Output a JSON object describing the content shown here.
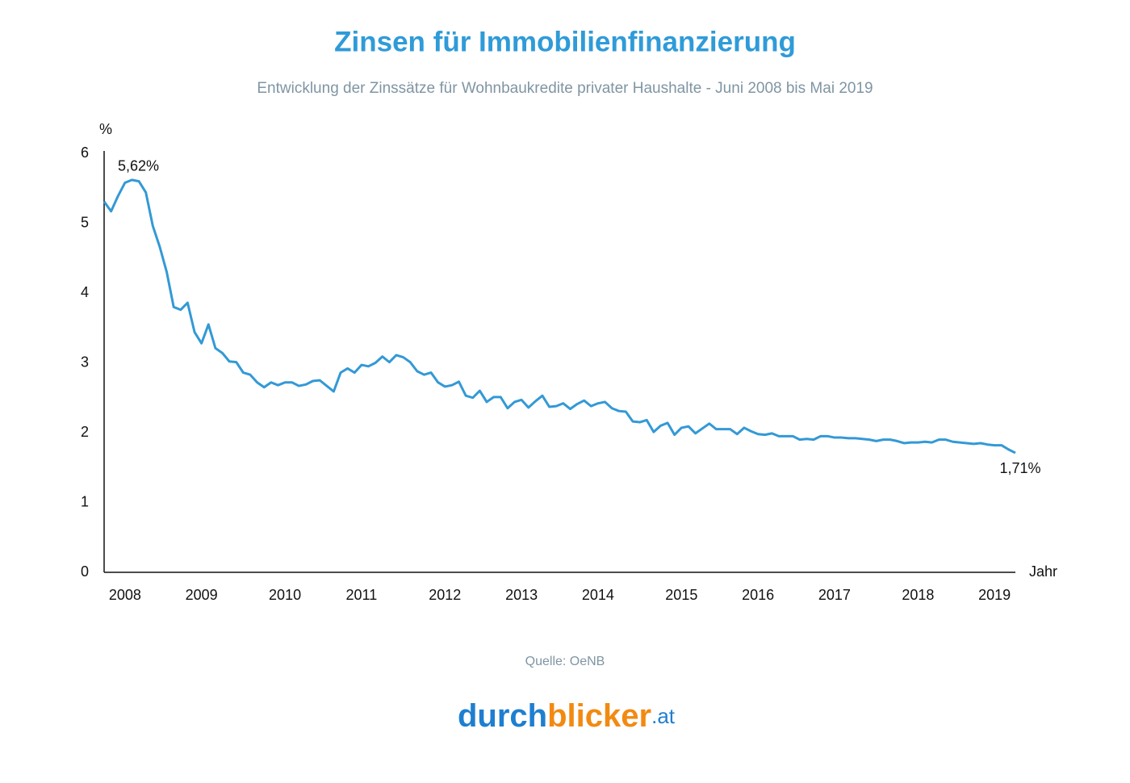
{
  "chart_data": {
    "type": "line",
    "title": "Zinsen für Immobilienfinanzierung",
    "subtitle": "Entwicklung der Zinssätze für Wohnbaukredite privater Haushalte - Juni 2008 bis Mai 2019",
    "ylabel": "%",
    "xlabel": "Jahr",
    "source": "Quelle: OeNB",
    "logo": [
      "durch",
      "blicker",
      ".at"
    ],
    "ylim": [
      0,
      6
    ],
    "yticks": [
      0,
      1,
      2,
      3,
      4,
      5,
      6
    ],
    "grid": false,
    "color": "#3399d6",
    "categories": [
      null,
      null,
      null,
      "2008",
      null,
      null,
      null,
      null,
      null,
      null,
      null,
      null,
      null,
      null,
      "2009",
      null,
      null,
      null,
      null,
      null,
      null,
      null,
      null,
      null,
      null,
      null,
      "2010",
      null,
      null,
      null,
      null,
      null,
      null,
      null,
      null,
      null,
      null,
      "2011",
      null,
      null,
      null,
      null,
      null,
      null,
      null,
      null,
      null,
      null,
      null,
      "2012",
      null,
      null,
      null,
      null,
      null,
      null,
      null,
      null,
      null,
      null,
      "2013",
      null,
      null,
      null,
      null,
      null,
      null,
      null,
      null,
      null,
      null,
      "2014",
      null,
      null,
      null,
      null,
      null,
      null,
      null,
      null,
      null,
      null,
      null,
      "2015",
      null,
      null,
      null,
      null,
      null,
      null,
      null,
      null,
      null,
      null,
      "2016",
      null,
      null,
      null,
      null,
      null,
      null,
      null,
      null,
      null,
      null,
      "2017",
      null,
      null,
      null,
      null,
      null,
      null,
      null,
      null,
      null,
      null,
      null,
      "2018",
      null,
      null,
      null,
      null,
      null,
      null,
      null,
      null,
      null,
      null,
      "2019",
      null,
      null,
      null
    ],
    "values": [
      5.31,
      5.17,
      5.39,
      5.58,
      5.62,
      5.6,
      5.44,
      4.96,
      4.66,
      4.3,
      3.8,
      3.76,
      3.86,
      3.44,
      3.28,
      3.55,
      3.21,
      3.14,
      3.02,
      3.01,
      2.86,
      2.83,
      2.72,
      2.65,
      2.72,
      2.68,
      2.72,
      2.72,
      2.67,
      2.69,
      2.74,
      2.75,
      2.67,
      2.59,
      2.86,
      2.92,
      2.86,
      2.97,
      2.95,
      3.0,
      3.09,
      3.01,
      3.11,
      3.08,
      3.01,
      2.88,
      2.83,
      2.86,
      2.72,
      2.66,
      2.68,
      2.73,
      2.53,
      2.5,
      2.6,
      2.44,
      2.51,
      2.51,
      2.35,
      2.44,
      2.47,
      2.36,
      2.45,
      2.53,
      2.37,
      2.38,
      2.42,
      2.34,
      2.41,
      2.46,
      2.38,
      2.42,
      2.44,
      2.35,
      2.31,
      2.3,
      2.16,
      2.15,
      2.18,
      2.01,
      2.1,
      2.14,
      1.97,
      2.07,
      2.09,
      1.99,
      2.06,
      2.13,
      2.05,
      2.05,
      2.05,
      1.98,
      2.07,
      2.02,
      1.98,
      1.97,
      1.99,
      1.95,
      1.95,
      1.95,
      1.9,
      1.91,
      1.9,
      1.95,
      1.95,
      1.93,
      1.93,
      1.92,
      1.92,
      1.91,
      1.9,
      1.88,
      1.9,
      1.9,
      1.88,
      1.85,
      1.86,
      1.86,
      1.87,
      1.86,
      1.9,
      1.9,
      1.87,
      1.86,
      1.85,
      1.84,
      1.85,
      1.83,
      1.82,
      1.82,
      1.76,
      1.71
    ],
    "value_labels": [
      null,
      null,
      null,
      null,
      "5,62%",
      null,
      null,
      null,
      null,
      null,
      null,
      null,
      null,
      null,
      null,
      null,
      null,
      null,
      null,
      null,
      null,
      null,
      null,
      null,
      null,
      null,
      null,
      null,
      null,
      null,
      null,
      null,
      null,
      null,
      null,
      null,
      null,
      null,
      null,
      null,
      null,
      null,
      null,
      null,
      null,
      null,
      null,
      null,
      null,
      null,
      null,
      null,
      null,
      null,
      null,
      null,
      null,
      null,
      null,
      null,
      null,
      null,
      null,
      null,
      null,
      null,
      null,
      null,
      null,
      null,
      null,
      null,
      null,
      null,
      null,
      null,
      null,
      null,
      null,
      null,
      null,
      null,
      null,
      null,
      null,
      null,
      null,
      null,
      null,
      null,
      null,
      null,
      null,
      null,
      null,
      null,
      null,
      null,
      null,
      null,
      null,
      null,
      null,
      null,
      null,
      null,
      null,
      null,
      null,
      null,
      null,
      null,
      null,
      null,
      null,
      null,
      null,
      null,
      null,
      null,
      null,
      null,
      null,
      null,
      null,
      null,
      null,
      null,
      null,
      null,
      null,
      "1,71%"
    ]
  }
}
